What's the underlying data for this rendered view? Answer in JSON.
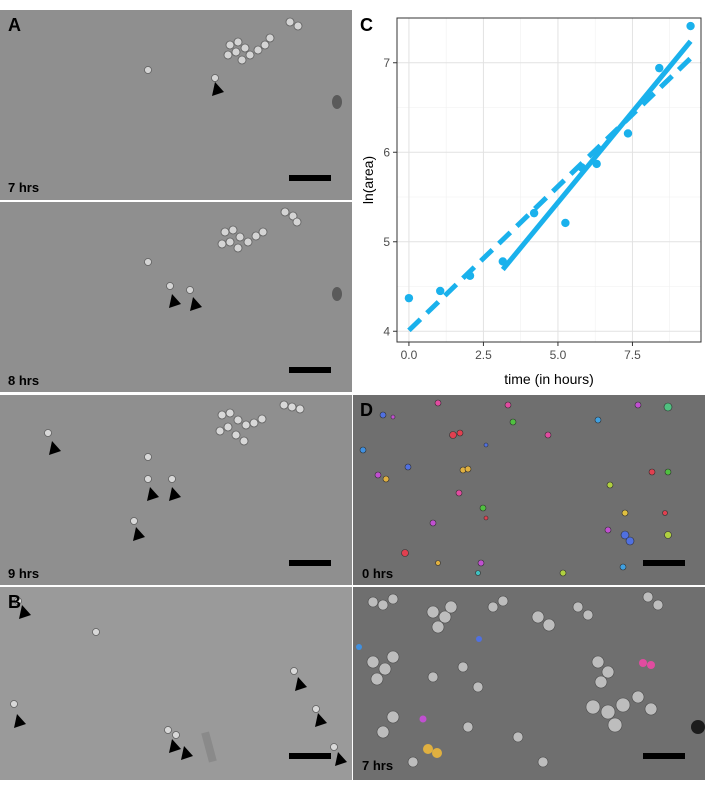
{
  "panels": {
    "A": {
      "letter": "A"
    },
    "B": {
      "letter": "B"
    },
    "C": {
      "letter": "C"
    },
    "D": {
      "letter": "D"
    }
  },
  "time_labels": {
    "a1": "7 hrs",
    "a2": "8 hrs",
    "a3": "9 hrs",
    "d1": "0 hrs",
    "d2": "7 hrs"
  },
  "colors": {
    "series": "#1ab1ec",
    "micrograph_bg": "#8f8f8f",
    "micrograph_dark": "#6d6d6d"
  },
  "chart_data": {
    "type": "scatter",
    "xlabel": "time (in hours)",
    "ylabel": "ln(area)",
    "xlim": [
      -0.4,
      9.8
    ],
    "ylim": [
      3.88,
      7.5
    ],
    "xticks": [
      0.0,
      2.5,
      5.0,
      7.5
    ],
    "xtick_labels": [
      "0.0",
      "2.5",
      "5.0",
      "7.5"
    ],
    "yticks": [
      4,
      5,
      6,
      7
    ],
    "ytick_labels": [
      "4",
      "5",
      "6",
      "7"
    ],
    "grid": true,
    "points": [
      {
        "x": 0.0,
        "y": 4.37
      },
      {
        "x": 1.05,
        "y": 4.45
      },
      {
        "x": 2.05,
        "y": 4.62
      },
      {
        "x": 3.15,
        "y": 4.78
      },
      {
        "x": 4.2,
        "y": 5.32
      },
      {
        "x": 5.25,
        "y": 5.21
      },
      {
        "x": 5.8,
        "y": 5.83
      },
      {
        "x": 6.3,
        "y": 5.87
      },
      {
        "x": 7.35,
        "y": 6.21
      },
      {
        "x": 8.4,
        "y": 6.94
      },
      {
        "x": 9.45,
        "y": 7.41
      }
    ],
    "fit_lines": [
      {
        "style": "solid",
        "x": [
          3.15,
          9.45
        ],
        "y": [
          4.69,
          7.24
        ]
      },
      {
        "style": "dashed",
        "x": [
          0.0,
          9.45
        ],
        "y": [
          4.01,
          7.05
        ]
      }
    ]
  }
}
